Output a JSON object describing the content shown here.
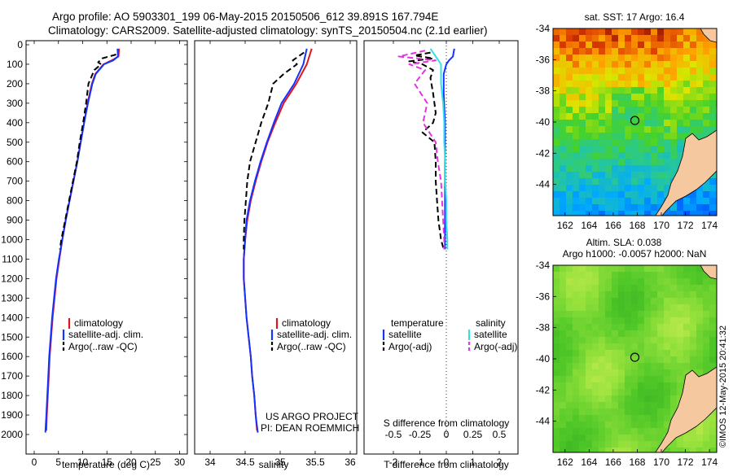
{
  "header": {
    "line1": "Argo profile: AO 5903301_199 06-May-2015 20150506_612 39.891S 167.794E",
    "line2": "Climatology: CARS2009. Satellite-adjusted climatology: synTS_20150504.nc (2.1d earlier)"
  },
  "depth_ticks": [
    "0",
    "100",
    "200",
    "300",
    "400",
    "500",
    "600",
    "700",
    "800",
    "900",
    "1000",
    "1100",
    "1200",
    "1300",
    "1400",
    "1500",
    "1600",
    "1700",
    "1800",
    "1900",
    "2000"
  ],
  "colors": {
    "climatology": "#e0141e",
    "satellite": "#1433ff",
    "argo": "#000000",
    "satellite_salinity": "#33e0e6",
    "argo_salinity": "#e633e0",
    "land": "#f5c8a0"
  },
  "chart_data": [
    {
      "type": "line",
      "id": "temperature",
      "xlabel": "temperature (deg C)",
      "ylabel": "",
      "xlim": [
        -1,
        31
      ],
      "ylim": [
        2050,
        0
      ],
      "xticks": [
        "0",
        "5",
        "10",
        "15",
        "20",
        "25",
        "30"
      ],
      "legend": [
        "climatology",
        "satellite-adj. clim.",
        "Argo(..raw -QC)"
      ],
      "series": [
        {
          "name": "climatology",
          "depth": [
            20,
            60,
            80,
            100,
            150,
            200,
            300,
            400,
            500,
            600,
            700,
            800,
            900,
            1000,
            1100,
            1200,
            1300,
            1400,
            1500,
            1600,
            1700,
            1800,
            1900,
            1980
          ],
          "values": [
            17.5,
            17.4,
            16.0,
            14.3,
            12.6,
            11.9,
            11.0,
            10.3,
            9.6,
            8.9,
            8.1,
            7.3,
            6.5,
            5.8,
            5.2,
            4.6,
            4.2,
            3.8,
            3.5,
            3.2,
            3.0,
            2.8,
            2.6,
            2.5
          ]
        },
        {
          "name": "satellite-adj. clim.",
          "depth": [
            20,
            60,
            80,
            100,
            150,
            200,
            300,
            400,
            500,
            600,
            700,
            800,
            900,
            1000,
            1100,
            1200,
            1300,
            1400,
            1500,
            1600,
            1700,
            1800,
            1900,
            1990
          ],
          "values": [
            17.2,
            17.3,
            16.3,
            14.4,
            12.7,
            12.0,
            11.1,
            10.3,
            9.6,
            8.9,
            8.1,
            7.3,
            6.5,
            5.8,
            5.1,
            4.5,
            4.1,
            3.7,
            3.4,
            3.1,
            2.9,
            2.7,
            2.5,
            2.3
          ]
        },
        {
          "name": "Argo(..raw -QC)",
          "depth": [
            50,
            70,
            90,
            100,
            130,
            200,
            300,
            400,
            500,
            600,
            700,
            800,
            900,
            1000,
            1050
          ],
          "values": [
            16.9,
            14.0,
            13.2,
            13.8,
            12.4,
            11.2,
            10.7,
            10.1,
            9.4,
            8.8,
            8.0,
            7.2,
            6.4,
            5.6,
            5.3
          ]
        }
      ]
    },
    {
      "type": "line",
      "id": "salinity",
      "xlabel": "salinity",
      "ylabel": "",
      "xlim": [
        33.8,
        36.1
      ],
      "ylim": [
        2050,
        0
      ],
      "xticks": [
        "34",
        "34.5",
        "35",
        "35.5",
        "36"
      ],
      "legend": [
        "climatology",
        "satellite-adj. clim.",
        "Argo(..raw -QC)"
      ],
      "series": [
        {
          "name": "climatology",
          "depth": [
            20,
            100,
            200,
            300,
            400,
            500,
            600,
            700,
            800,
            900,
            1000,
            1100,
            1200,
            1300,
            1400,
            1500,
            1600,
            1700,
            1800,
            1900,
            1980
          ],
          "values": [
            35.45,
            35.38,
            35.23,
            35.05,
            34.93,
            34.82,
            34.73,
            34.65,
            34.58,
            34.53,
            34.5,
            34.48,
            34.48,
            34.5,
            34.52,
            34.55,
            34.58,
            34.6,
            34.63,
            34.65,
            34.67
          ]
        },
        {
          "name": "satellite-adj. clim.",
          "depth": [
            20,
            100,
            200,
            300,
            400,
            500,
            600,
            700,
            800,
            900,
            1000,
            1100,
            1200,
            1300,
            1400,
            1500,
            1600,
            1700,
            1800,
            1900,
            1990
          ],
          "values": [
            35.38,
            35.33,
            35.2,
            35.02,
            34.91,
            34.81,
            34.72,
            34.64,
            34.57,
            34.52,
            34.5,
            34.48,
            34.48,
            34.5,
            34.52,
            34.55,
            34.58,
            34.6,
            34.63,
            34.65,
            34.68
          ]
        },
        {
          "name": "Argo(..raw -QC)",
          "depth": [
            40,
            80,
            100,
            150,
            200,
            300,
            400,
            500,
            600,
            700,
            800,
            900,
            1000,
            1050
          ],
          "values": [
            35.34,
            35.18,
            35.24,
            35.05,
            34.9,
            34.83,
            34.73,
            34.65,
            34.57,
            34.53,
            34.51,
            34.49,
            34.48,
            34.48
          ]
        }
      ]
    },
    {
      "type": "line",
      "id": "differences",
      "xlabel": "T difference from climatology",
      "xlabel_top": "S difference from climatology",
      "xlim": [
        -2.6,
        2.9
      ],
      "ylim": [
        2050,
        0
      ],
      "xticks": [
        "-2",
        "-1",
        "0",
        "1",
        "2"
      ],
      "xticks_salinity": [
        "-0.5",
        "-0.25",
        "0",
        "0.25",
        "0.5"
      ],
      "legend_headers": [
        "temperature",
        "salinity"
      ],
      "legend": [
        "satellite",
        "Argo(-adj)",
        "satellite",
        "Argo(-adj)"
      ],
      "series": [
        {
          "name": "satellite",
          "depth": [
            20,
            60,
            80,
            100,
            150,
            250,
            400,
            600,
            800,
            1000,
            1050
          ],
          "values": [
            0.3,
            0.25,
            0.1,
            0.0,
            -0.1,
            -0.1,
            -0.05,
            -0.05,
            -0.05,
            -0.05,
            -0.05
          ]
        },
        {
          "name": "Argo(-adj)",
          "depth": [
            40,
            55,
            70,
            85,
            100,
            130,
            170,
            250,
            350,
            400,
            450,
            500,
            600,
            700,
            800,
            900,
            1000,
            1050
          ],
          "values": [
            -0.6,
            -1.2,
            -0.5,
            -1.4,
            -0.9,
            -0.5,
            -0.6,
            -0.5,
            -0.4,
            -0.5,
            -0.9,
            -0.45,
            -0.4,
            -0.4,
            -0.35,
            -0.3,
            -0.2,
            -0.1
          ]
        },
        {
          "name": "satellite (salinity)",
          "depth": [
            20,
            60,
            100,
            200,
            300,
            400,
            500,
            600,
            700,
            800,
            900,
            1000,
            1050
          ],
          "values": [
            -0.15,
            -0.1,
            -0.05,
            -0.05,
            -0.03,
            -0.02,
            -0.02,
            -0.01,
            -0.01,
            0.0,
            0.0,
            0.01,
            0.01
          ]
        },
        {
          "name": "Argo(-adj) (salinity)",
          "depth": [
            30,
            60,
            80,
            100,
            130,
            200,
            300,
            400,
            500,
            600,
            700,
            800,
            900,
            1000,
            1050
          ],
          "values": [
            -0.2,
            -0.45,
            -0.1,
            -0.35,
            -0.2,
            -0.3,
            -0.18,
            -0.22,
            -0.1,
            -0.08,
            -0.05,
            -0.04,
            -0.03,
            -0.02,
            -0.02
          ]
        }
      ]
    },
    {
      "type": "heatmap",
      "id": "sst-map",
      "title": "sat. SST: 17 Argo: 16.4",
      "xticks": [
        "162",
        "164",
        "166",
        "168",
        "170",
        "172",
        "174"
      ],
      "yticks": [
        "-34",
        "-36",
        "-38",
        "-40",
        "-42",
        "-44"
      ],
      "xlim": [
        161,
        174.6
      ],
      "ylim": [
        -46,
        -34
      ],
      "marker": {
        "lon": 167.8,
        "lat": -39.9
      }
    },
    {
      "type": "heatmap",
      "id": "sla-map",
      "title": "Altim. SLA: 0.038",
      "subtitle": "Argo h1000: -0.0057 h2000: NaN",
      "xticks": [
        "162",
        "164",
        "166",
        "168",
        "170",
        "172",
        "174"
      ],
      "yticks": [
        "-34",
        "-36",
        "-38",
        "-40",
        "-42",
        "-44"
      ],
      "xlim": [
        161,
        174.6
      ],
      "ylim": [
        -46,
        -34
      ],
      "marker": {
        "lon": 167.8,
        "lat": -39.9
      }
    }
  ],
  "annotations": {
    "project": "US ARGO PROJECT",
    "pi": "PI: DEAN ROEMMICH",
    "imos": "©IMOS 12-May-2015 20:41:32"
  }
}
